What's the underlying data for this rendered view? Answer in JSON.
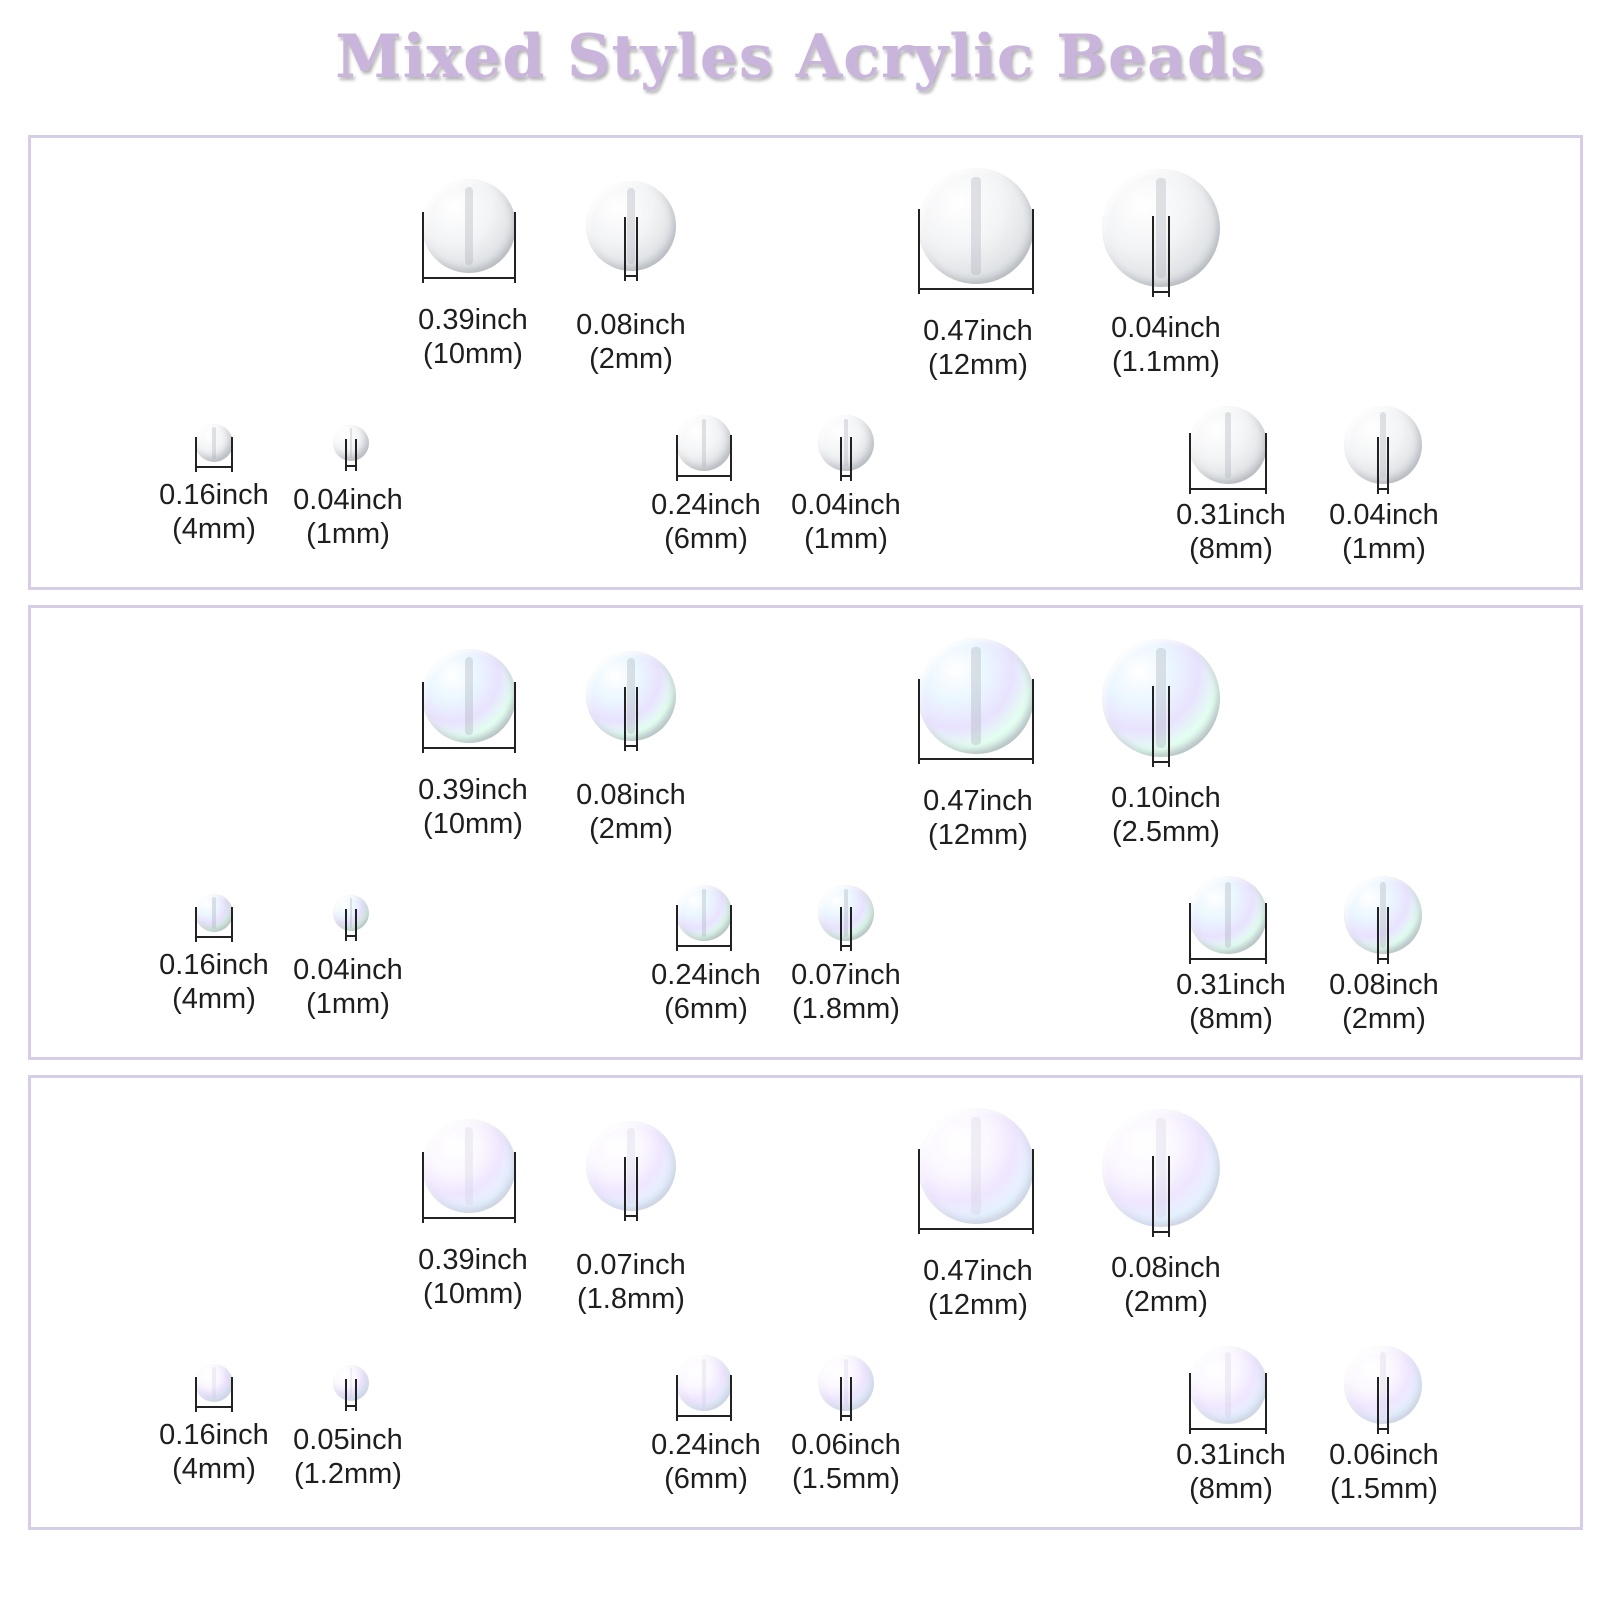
{
  "title": "Mixed Styles Acrylic Beads",
  "panels": [
    {
      "style": "transparent",
      "items": [
        {
          "label": "0.39inch",
          "sub": "(10mm)"
        },
        {
          "label": "0.08inch",
          "sub": "(2mm)"
        },
        {
          "label": "0.47inch",
          "sub": "(12mm)"
        },
        {
          "label": "0.04inch",
          "sub": "(1.1mm)"
        },
        {
          "label": "0.16inch",
          "sub": "(4mm)"
        },
        {
          "label": "0.04inch",
          "sub": "(1mm)"
        },
        {
          "label": "0.24inch",
          "sub": "(6mm)"
        },
        {
          "label": "0.04inch",
          "sub": "(1mm)"
        },
        {
          "label": "0.31inch",
          "sub": "(8mm)"
        },
        {
          "label": "0.04inch",
          "sub": "(1mm)"
        }
      ]
    },
    {
      "style": "ab-color",
      "items": [
        {
          "label": "0.39inch",
          "sub": "(10mm)"
        },
        {
          "label": "0.08inch",
          "sub": "(2mm)"
        },
        {
          "label": "0.47inch",
          "sub": "(12mm)"
        },
        {
          "label": "0.10inch",
          "sub": "(2.5mm)"
        },
        {
          "label": "0.16inch",
          "sub": "(4mm)"
        },
        {
          "label": "0.04inch",
          "sub": "(1mm)"
        },
        {
          "label": "0.24inch",
          "sub": "(6mm)"
        },
        {
          "label": "0.07inch",
          "sub": "(1.8mm)"
        },
        {
          "label": "0.31inch",
          "sub": "(8mm)"
        },
        {
          "label": "0.08inch",
          "sub": "(2mm)"
        }
      ]
    },
    {
      "style": "pearl",
      "items": [
        {
          "label": "0.39inch",
          "sub": "(10mm)"
        },
        {
          "label": "0.07inch",
          "sub": "(1.8mm)"
        },
        {
          "label": "0.47inch",
          "sub": "(12mm)"
        },
        {
          "label": "0.08inch",
          "sub": "(2mm)"
        },
        {
          "label": "0.16inch",
          "sub": "(4mm)"
        },
        {
          "label": "0.05inch",
          "sub": "(1.2mm)"
        },
        {
          "label": "0.24inch",
          "sub": "(6mm)"
        },
        {
          "label": "0.06inch",
          "sub": "(1.5mm)"
        },
        {
          "label": "0.31inch",
          "sub": "(8mm)"
        },
        {
          "label": "0.06inch",
          "sub": "(1.5mm)"
        }
      ]
    }
  ]
}
